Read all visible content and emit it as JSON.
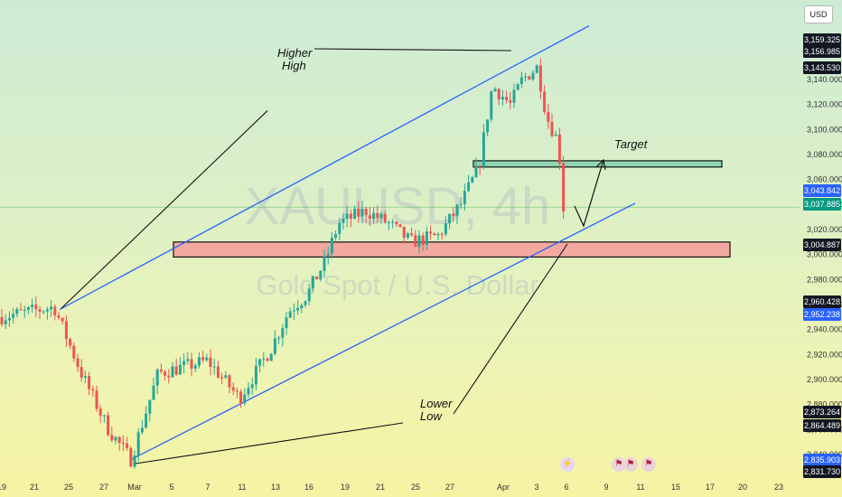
{
  "header": {
    "currency": "USD"
  },
  "watermark": {
    "symbol": "XAUUSD, 4h",
    "name": "Gold Spot / U.S. Dollar"
  },
  "annotations": {
    "higher_high": [
      "Higher",
      "High"
    ],
    "lower_low": [
      "Lower",
      "Low"
    ],
    "target": "Target"
  },
  "chart_data": {
    "type": "candlestick",
    "symbol": "XAUUSD",
    "timeframe": "4h",
    "y_axis": {
      "ticks": [
        2840,
        2860,
        2880,
        2900,
        2920,
        2940,
        2960,
        2980,
        3000,
        3020,
        3040,
        3060,
        3080,
        3100,
        3120,
        3140
      ],
      "tick_labels": [
        "2,840.000",
        "2,860.000",
        "2,880.000",
        "2,900.000",
        "2,920.000",
        "2,940.000",
        "2,960.000",
        "2,980.000",
        "3,000.000",
        "3,020.000",
        "3,040.000",
        "3,060.000",
        "3,080.000",
        "3,100.000",
        "3,120.000",
        "3,140.000"
      ],
      "ylim": [
        2830,
        3172
      ]
    },
    "x_axis": {
      "tick_labels": [
        "19",
        "21",
        "25",
        "27",
        "Mar",
        "5",
        "7",
        "11",
        "13",
        "16",
        "19",
        "21",
        "25",
        "27",
        "Apr",
        "3",
        "6",
        "9",
        "11",
        "15",
        "17",
        "20",
        "23"
      ]
    },
    "price_labels": [
      {
        "value": 3159.325,
        "label": "3,159.325",
        "color": "#131722"
      },
      {
        "value": 3156.985,
        "label": "3,156.985",
        "color": "#131722"
      },
      {
        "value": 3143.53,
        "label": "3,143.530",
        "color": "#131722"
      },
      {
        "value": 3043.842,
        "label": "3,043.842",
        "color": "#2962ff"
      },
      {
        "value": 3037.885,
        "label": "3,037.885",
        "color": "#089981"
      },
      {
        "value": 3004.887,
        "label": "3,004.887",
        "color": "#131722"
      },
      {
        "value": 2960.428,
        "label": "2,960.428",
        "color": "#131722"
      },
      {
        "value": 2952.238,
        "label": "2,952.238",
        "color": "#2962ff"
      },
      {
        "value": 2873.264,
        "label": "2,873.264",
        "color": "#131722"
      },
      {
        "value": 2864.489,
        "label": "2,864.489",
        "color": "#131722"
      },
      {
        "value": 2835.903,
        "label": "2,835.903",
        "color": "#2962ff"
      },
      {
        "value": 2831.73,
        "label": "2,831.730",
        "color": "#131722"
      }
    ],
    "zones": [
      {
        "name": "support-zone",
        "from": 2998,
        "to": 3010,
        "color": "#f2a9a0"
      },
      {
        "name": "target-zone",
        "from": 3070,
        "to": 3075,
        "color": "#8fd6b0"
      }
    ],
    "colors": {
      "up": "#26a69a",
      "down": "#ef5350",
      "channel": "#2962ff",
      "current_price_line": "#4caf50"
    },
    "grid": false
  }
}
